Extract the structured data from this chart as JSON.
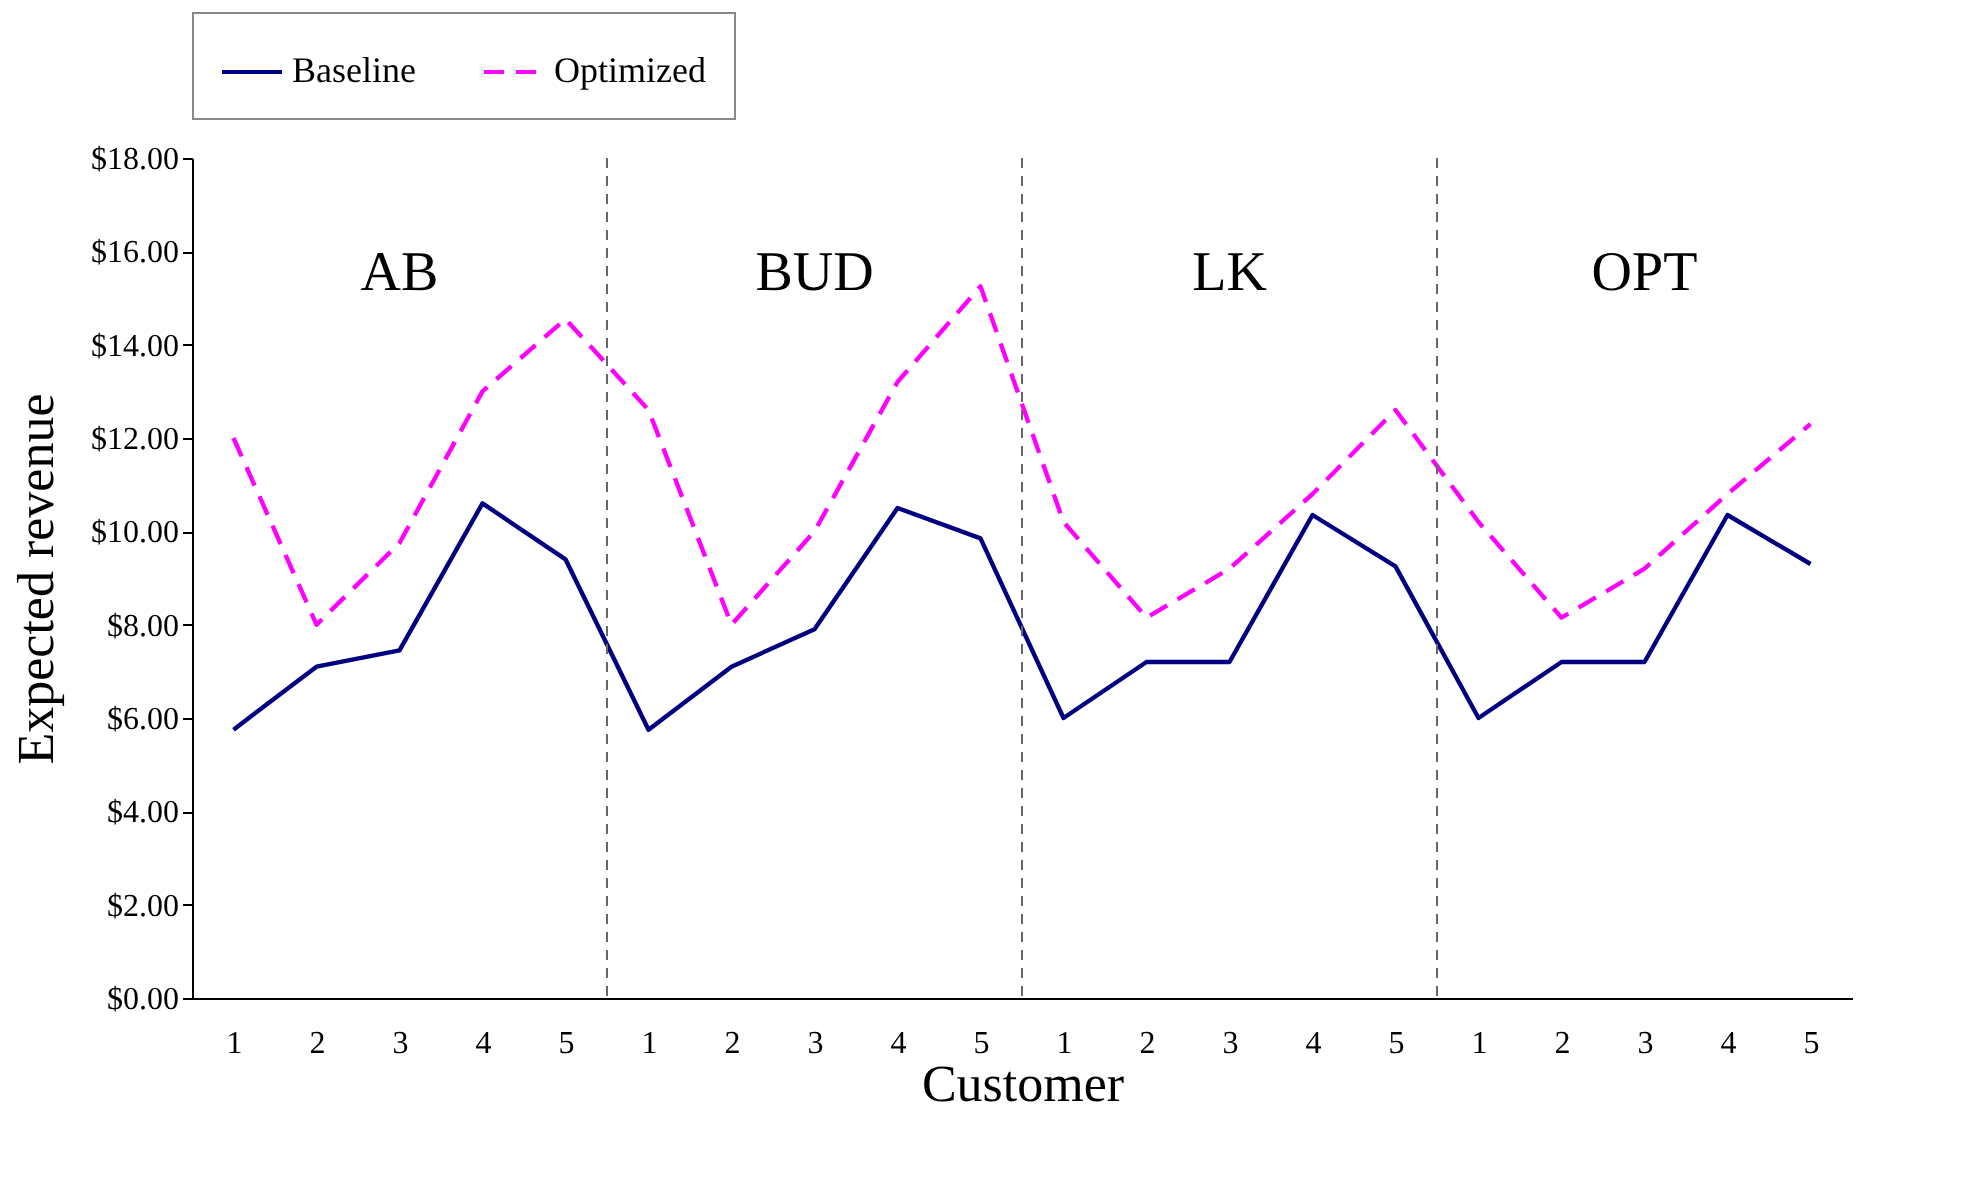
{
  "chart_data": {
    "type": "line",
    "xlabel": "Customer",
    "ylabel": "Expected revenue",
    "categories": [
      "1",
      "2",
      "3",
      "4",
      "5",
      "1",
      "2",
      "3",
      "4",
      "5",
      "1",
      "2",
      "3",
      "4",
      "5",
      "1",
      "2",
      "3",
      "4",
      "5"
    ],
    "ylim": [
      0,
      18
    ],
    "yticks": [
      {
        "value": 0,
        "label": "$0.00"
      },
      {
        "value": 2,
        "label": "$2.00"
      },
      {
        "value": 4,
        "label": "$4.00"
      },
      {
        "value": 6,
        "label": "$6.00"
      },
      {
        "value": 8,
        "label": "$8.00"
      },
      {
        "value": 10,
        "label": "$10.00"
      },
      {
        "value": 12,
        "label": "$12.00"
      },
      {
        "value": 14,
        "label": "$14.00"
      },
      {
        "value": 16,
        "label": "$16.00"
      },
      {
        "value": 18,
        "label": "$18.00"
      }
    ],
    "series": [
      {
        "name": "Baseline",
        "color": "#000080",
        "line_style": "solid",
        "values": [
          5.75,
          7.1,
          7.45,
          10.6,
          9.4,
          5.75,
          7.1,
          7.9,
          10.5,
          9.85,
          6.0,
          7.2,
          7.2,
          10.35,
          9.25,
          6.0,
          7.2,
          7.2,
          10.35,
          9.3
        ]
      },
      {
        "name": "Optimized",
        "color": "#ff00ff",
        "line_style": "dashed",
        "values": [
          12.0,
          8.0,
          9.75,
          13.0,
          14.55,
          12.6,
          8.0,
          10.0,
          13.2,
          15.25,
          10.2,
          8.15,
          9.2,
          10.8,
          12.6,
          10.2,
          8.15,
          9.2,
          10.8,
          12.3
        ]
      }
    ],
    "annotations": [
      "AB",
      "BUD",
      "LK",
      "OPT"
    ],
    "grid": false,
    "legend": "top",
    "marker": "none"
  }
}
